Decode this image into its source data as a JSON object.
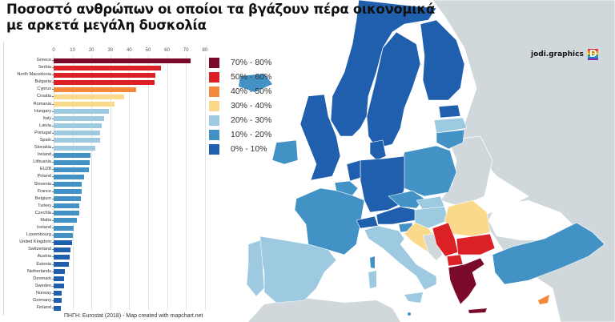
{
  "title": {
    "line1": "Ποσοστό ανθρώπων οι οποίοι τα βγάζουν πέρα οικονομικά",
    "line2": "με αρκετά μεγάλη δυσκολία"
  },
  "source": "ΠΗΓΗ: Eurostat (2018) - Map created with mapchart.net",
  "brand": {
    "name": "jodi.graphics",
    "logo_letter": "D"
  },
  "legend": [
    {
      "label": "70% - 80%",
      "color": "#7b0a2a"
    },
    {
      "label": "50% - 60%",
      "color": "#dc2126"
    },
    {
      "label": "40% - 50%",
      "color": "#f4883c"
    },
    {
      "label": "30% - 40%",
      "color": "#fbd98b"
    },
    {
      "label": "20% - 30%",
      "color": "#9ecae1"
    },
    {
      "label": "10% - 20%",
      "color": "#4292c6"
    },
    {
      "label": "0% - 10%",
      "color": "#1f5fae"
    }
  ],
  "colors": {
    "no_data": "#d0d8dc",
    "sea": "#ffffff",
    "border": "#ffffff"
  },
  "chart_data": {
    "type": "bar",
    "orientation": "horizontal",
    "title": "Ποσοστό ανθρώπων οι οποίοι τα βγάζουν πέρα οικονομικά με αρκετά μεγάλη δυσκολία",
    "xlabel": "",
    "ylabel": "",
    "xlim": [
      0,
      80
    ],
    "xticks": [
      0,
      10,
      20,
      30,
      40,
      50,
      60,
      70,
      80
    ],
    "grid": true,
    "categories": [
      "Greece",
      "Serbia",
      "North Macedonia",
      "Bulgaria",
      "Cyprus",
      "Croatia",
      "Romania",
      "Hungary",
      "Italy",
      "Latvia",
      "Portugal",
      "Spain",
      "Slovakia",
      "Ireland",
      "Lithuania",
      "EU28",
      "Poland",
      "Slovenia",
      "France",
      "Belgium",
      "Turkey",
      "Czechia",
      "Malta",
      "Iceland",
      "Luxembourg",
      "United Kingdom",
      "Switzerland",
      "Austria",
      "Estonia",
      "Netherlands",
      "Denmark",
      "Sweden",
      "Norway",
      "Germany",
      "Finland"
    ],
    "values": [
      72.5,
      56.7,
      53.7,
      53.5,
      43.6,
      37.4,
      32.3,
      29.4,
      26.6,
      25.3,
      24.5,
      24.4,
      22.0,
      19.7,
      18.9,
      18.6,
      15.9,
      14.9,
      14.8,
      14.2,
      13.5,
      13.5,
      12.1,
      10.4,
      10.1,
      9.7,
      9.0,
      8.3,
      8.0,
      6.0,
      5.7,
      5.3,
      4.4,
      4.3,
      3.9
    ],
    "bar_colors": [
      "#7b0a2a",
      "#dc2126",
      "#dc2126",
      "#dc2126",
      "#f4883c",
      "#fbd98b",
      "#fbd98b",
      "#9ecae1",
      "#9ecae1",
      "#9ecae1",
      "#9ecae1",
      "#9ecae1",
      "#9ecae1",
      "#4292c6",
      "#4292c6",
      "#4292c6",
      "#4292c6",
      "#4292c6",
      "#4292c6",
      "#4292c6",
      "#4292c6",
      "#4292c6",
      "#4292c6",
      "#4292c6",
      "#4292c6",
      "#1f5fae",
      "#1f5fae",
      "#1f5fae",
      "#1f5fae",
      "#1f5fae",
      "#1f5fae",
      "#1f5fae",
      "#1f5fae",
      "#1f5fae",
      "#1f5fae"
    ]
  },
  "map": {
    "countries": [
      {
        "name": "Norway",
        "class": "0% - 10%"
      },
      {
        "name": "Sweden",
        "class": "0% - 10%"
      },
      {
        "name": "Finland",
        "class": "0% - 10%"
      },
      {
        "name": "Estonia",
        "class": "0% - 10%"
      },
      {
        "name": "Latvia",
        "class": "20% - 30%"
      },
      {
        "name": "Lithuania",
        "class": "10% - 20%"
      },
      {
        "name": "Iceland",
        "class": "10% - 20%"
      },
      {
        "name": "Ireland",
        "class": "10% - 20%"
      },
      {
        "name": "United Kingdom",
        "class": "0% - 10%"
      },
      {
        "name": "Denmark",
        "class": "0% - 10%"
      },
      {
        "name": "Netherlands",
        "class": "0% - 10%"
      },
      {
        "name": "Belgium",
        "class": "10% - 20%"
      },
      {
        "name": "Germany",
        "class": "0% - 10%"
      },
      {
        "name": "Poland",
        "class": "10% - 20%"
      },
      {
        "name": "France",
        "class": "10% - 20%"
      },
      {
        "name": "Spain",
        "class": "20% - 30%"
      },
      {
        "name": "Portugal",
        "class": "20% - 30%"
      },
      {
        "name": "Switzerland",
        "class": "0% - 10%"
      },
      {
        "name": "Austria",
        "class": "0% - 10%"
      },
      {
        "name": "Czechia",
        "class": "10% - 20%"
      },
      {
        "name": "Slovakia",
        "class": "20% - 30%"
      },
      {
        "name": "Hungary",
        "class": "20% - 30%"
      },
      {
        "name": "Slovenia",
        "class": "10% - 20%"
      },
      {
        "name": "Italy",
        "class": "20% - 30%"
      },
      {
        "name": "Croatia",
        "class": "30% - 40%"
      },
      {
        "name": "Romania",
        "class": "30% - 40%"
      },
      {
        "name": "Serbia",
        "class": "50% - 60%"
      },
      {
        "name": "Bulgaria",
        "class": "50% - 60%"
      },
      {
        "name": "North Macedonia",
        "class": "50% - 60%"
      },
      {
        "name": "Greece",
        "class": "70% - 80%"
      },
      {
        "name": "Turkey",
        "class": "10% - 20%"
      },
      {
        "name": "Cyprus",
        "class": "40% - 50%"
      },
      {
        "name": "Malta",
        "class": "10% - 20%"
      }
    ]
  }
}
